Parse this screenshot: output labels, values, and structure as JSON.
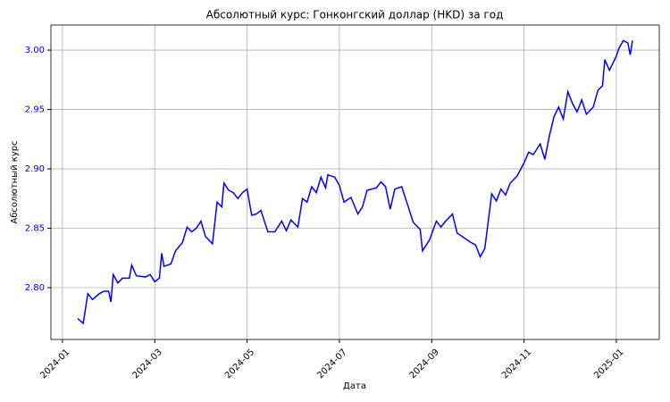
{
  "chart_data": {
    "type": "line",
    "title": "Абсолютный курс: Гонконгский доллар (HKD) за год",
    "x_label": "Дата",
    "y_label": "Абсолютный курс",
    "color": "#0000ff",
    "axis_color": "#0000cc",
    "grid": true,
    "x": [
      0.33,
      0.45,
      0.55,
      0.65,
      0.8,
      0.9,
      1.0,
      1.05,
      1.1,
      1.2,
      1.3,
      1.45,
      1.5,
      1.6,
      1.8,
      1.9,
      2.0,
      2.1,
      2.15,
      2.2,
      2.35,
      2.45,
      2.6,
      2.7,
      2.8,
      2.9,
      3.0,
      3.1,
      3.25,
      3.35,
      3.45,
      3.5,
      3.6,
      3.7,
      3.8,
      3.9,
      4.0,
      4.1,
      4.2,
      4.3,
      4.45,
      4.6,
      4.75,
      4.85,
      4.95,
      5.1,
      5.2,
      5.3,
      5.4,
      5.5,
      5.6,
      5.7,
      5.75,
      5.9,
      6.0,
      6.1,
      6.25,
      6.4,
      6.5,
      6.6,
      6.8,
      6.9,
      7.0,
      7.1,
      7.2,
      7.35,
      7.45,
      7.6,
      7.75,
      7.8,
      7.95,
      8.1,
      8.2,
      8.3,
      8.45,
      8.55,
      8.7,
      8.85,
      8.95,
      9.05,
      9.15,
      9.3,
      9.4,
      9.5,
      9.6,
      9.7,
      9.85,
      10.0,
      10.1,
      10.2,
      10.35,
      10.45,
      10.55,
      10.65,
      10.75,
      10.85,
      10.95,
      11.05,
      11.15,
      11.25,
      11.35,
      11.5,
      11.6,
      11.7,
      11.75,
      11.85,
      12.0,
      12.05,
      12.15,
      12.25,
      12.3,
      12.35
    ],
    "values": [
      2.774,
      2.77,
      2.795,
      2.79,
      2.795,
      2.797,
      2.797,
      2.788,
      2.811,
      2.804,
      2.808,
      2.808,
      2.819,
      2.81,
      2.809,
      2.811,
      2.805,
      2.808,
      2.829,
      2.818,
      2.82,
      2.831,
      2.838,
      2.851,
      2.847,
      2.85,
      2.856,
      2.843,
      2.837,
      2.872,
      2.868,
      2.888,
      2.882,
      2.88,
      2.875,
      2.88,
      2.883,
      2.861,
      2.862,
      2.865,
      2.847,
      2.847,
      2.856,
      2.848,
      2.857,
      2.851,
      2.875,
      2.872,
      2.885,
      2.88,
      2.893,
      2.884,
      2.895,
      2.893,
      2.886,
      2.872,
      2.876,
      2.862,
      2.868,
      2.882,
      2.884,
      2.889,
      2.885,
      2.866,
      2.883,
      2.885,
      2.873,
      2.855,
      2.849,
      2.831,
      2.84,
      2.856,
      2.851,
      2.856,
      2.862,
      2.846,
      2.842,
      2.838,
      2.836,
      2.826,
      2.833,
      2.879,
      2.873,
      2.883,
      2.878,
      2.888,
      2.894,
      2.905,
      2.914,
      2.912,
      2.921,
      2.908,
      2.928,
      2.944,
      2.952,
      2.942,
      2.965,
      2.955,
      2.948,
      2.958,
      2.946,
      2.952,
      2.966,
      2.97,
      2.992,
      2.983,
      2.995,
      3.001,
      3.008,
      3.006,
      2.996,
      3.008
    ],
    "xlim": [
      -0.25,
      12.93
    ],
    "xticks": [
      {
        "value": 0,
        "label": "2024-01"
      },
      {
        "value": 2,
        "label": "2024-03"
      },
      {
        "value": 4,
        "label": "2024-05"
      },
      {
        "value": 6,
        "label": "2024-07"
      },
      {
        "value": 8,
        "label": "2024-09"
      },
      {
        "value": 10,
        "label": "2024-11"
      },
      {
        "value": 12,
        "label": "2025-01"
      }
    ],
    "ylim": [
      2.7564,
      3.0211
    ],
    "yticks": [
      {
        "value": 2.8,
        "label": "2.80"
      },
      2.85,
      {
        "value": 2.9,
        "label": "2.90"
      },
      2.95,
      {
        "value": 3.0,
        "label": "3.00"
      }
    ]
  }
}
